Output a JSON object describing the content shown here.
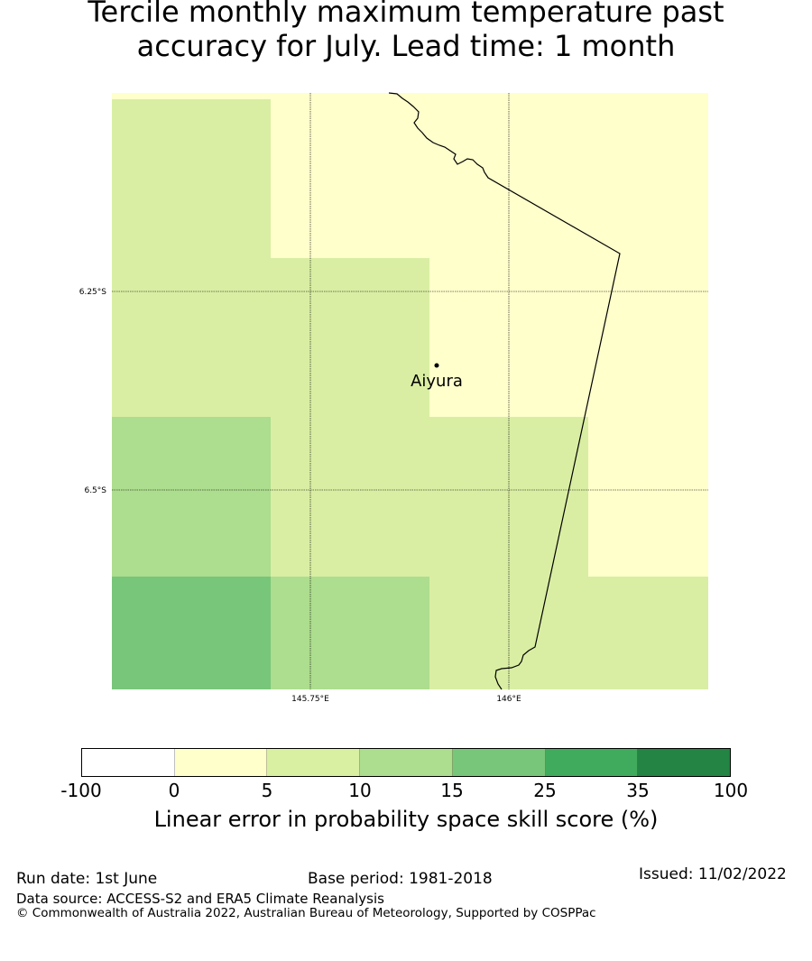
{
  "title": {
    "line1": "Tercile monthly maximum temperature past",
    "line2": "accuracy for July. Lead time: 1 month"
  },
  "map": {
    "lat_labels": [
      "6.25°S",
      "6.5°S"
    ],
    "lon_labels": [
      "145.75°E",
      "146°E"
    ],
    "place_name": "Aiyura",
    "grid": [
      [
        "5-10",
        "0-5",
        "0-5",
        "0-5"
      ],
      [
        "5-10",
        "5-10",
        "0-5",
        "0-5"
      ],
      [
        "10-15",
        "5-10",
        "5-10",
        "0-5"
      ],
      [
        "15-25",
        "10-15",
        "5-10",
        "5-10"
      ]
    ]
  },
  "colorbar": {
    "ticks": [
      "-100",
      "0",
      "5",
      "10",
      "15",
      "25",
      "35",
      "100"
    ],
    "colors": [
      "#ffffff",
      "#ffffcc",
      "#d9f0a3",
      "#addd8e",
      "#78c679",
      "#41ab5d",
      "#238443"
    ],
    "label": "Linear error in probability space skill score (%)"
  },
  "footer": {
    "run_date": "Run date: 1st June",
    "base_period": "Base period: 1981-2018",
    "issued": "Issued: 11/02/2022",
    "data_source": "Data source: ACCESS-S2 and ERA5 Climate Reanalysis",
    "copyright": "© Commonwealth of Australia 2022, Australian Bureau of Meteorology, Supported by COSPPac"
  }
}
